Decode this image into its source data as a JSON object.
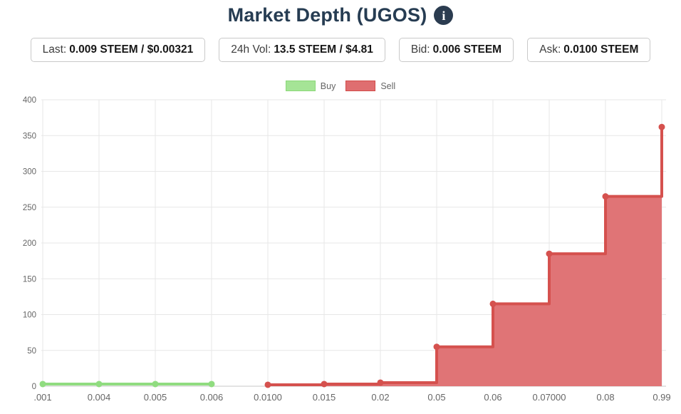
{
  "title": {
    "text": "Market Depth (UGOS)",
    "info_icon_glyph": "i",
    "color": "#263c52"
  },
  "stats": [
    {
      "label": "Last:",
      "value": "0.009 STEEM / $0.00321"
    },
    {
      "label": "24h Vol:",
      "value": "13.5 STEEM / $4.81"
    },
    {
      "label": "Bid:",
      "value": "0.006 STEEM"
    },
    {
      "label": "Ask:",
      "value": "0.0100 STEEM"
    }
  ],
  "legend": [
    {
      "label": "Buy",
      "fill": "#a5e496",
      "border": "#8bd878"
    },
    {
      "label": "Sell",
      "fill": "#df6e70",
      "border": "#d24b49"
    }
  ],
  "chart_data": {
    "type": "area",
    "title": "",
    "xlabel": "",
    "ylabel": "",
    "categories": [
      ".001",
      "0.004",
      "0.005",
      "0.006",
      "0.0100",
      "0.015",
      "0.02",
      "0.05",
      "0.06",
      "0.07000",
      "0.08",
      "0.99"
    ],
    "series": [
      {
        "name": "Buy",
        "kind": "line",
        "step": false,
        "start_index": 0,
        "values": [
          3,
          3,
          3,
          3
        ],
        "color": "#90dc80",
        "marker_color": "#90dc80",
        "fill": null
      },
      {
        "name": "Sell",
        "kind": "area",
        "step": "left",
        "start_index": 4,
        "values": [
          2,
          3,
          5,
          55,
          115,
          185,
          265,
          362
        ],
        "color": "#d5514e",
        "marker_color": "#d5514e",
        "fill": "#e07476"
      }
    ],
    "ylim": [
      0,
      400
    ],
    "ytick_step": 50,
    "grid": true,
    "grid_color": "#e7e7e7",
    "axis_line_color": "#c7c7c7",
    "tick_label_color": "#666666",
    "legend_position": "top-center"
  }
}
